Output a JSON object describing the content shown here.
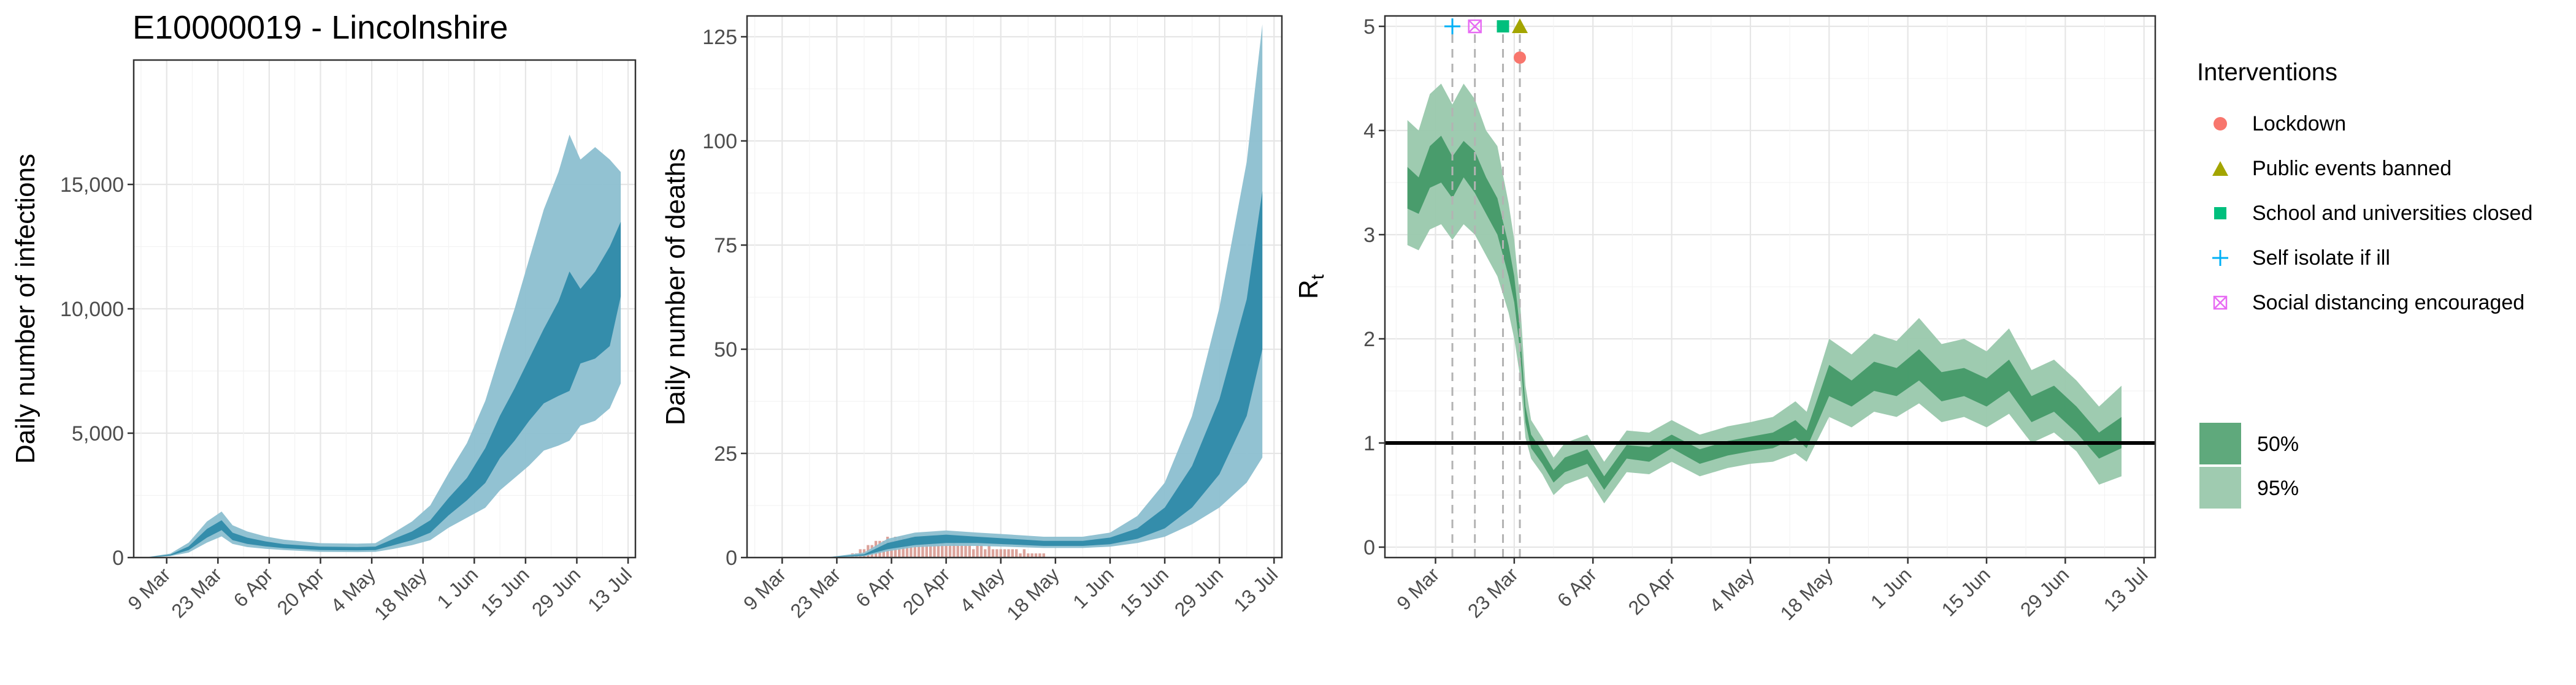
{
  "page_title": "E10000019 - Lincolnshire",
  "colors": {
    "infections_50": "#2a87a6",
    "infections_95": "#8cbfd0",
    "deaths_observed": "#d6938a",
    "rt_50": "#3f9765",
    "rt_95": "#99c8ac",
    "lockdown": "#f8766d",
    "public_events": "#a3a500",
    "school": "#00bf7d",
    "self_isolate": "#00b0f6",
    "social_distancing": "#e76bf3"
  },
  "legend": {
    "title": "Interventions",
    "items": [
      {
        "label": "Lockdown",
        "icon": "circle-icon",
        "color": "#f8766d"
      },
      {
        "label": "Public events banned",
        "icon": "triangle-icon",
        "color": "#a3a500"
      },
      {
        "label": "School and universities closed",
        "icon": "square-icon",
        "color": "#00bf7d"
      },
      {
        "label": "Self isolate if ill",
        "icon": "plus-icon",
        "color": "#00b0f6"
      },
      {
        "label": "Social distancing encouraged",
        "icon": "boxed-x-icon",
        "color": "#e76bf3"
      }
    ],
    "bands": [
      {
        "label": "50%",
        "color": "#5fa97c"
      },
      {
        "label": "95%",
        "color": "#9fcbb0"
      }
    ]
  },
  "chart_data": [
    {
      "type": "area",
      "title": "E10000019 - Lincolnshire",
      "xlabel": "",
      "ylabel": "Daily number of infections",
      "x_ticks": [
        "9 Mar",
        "23 Mar",
        "6 Apr",
        "20 Apr",
        "4 May",
        "18 May",
        "1 Jun",
        "15 Jun",
        "29 Jun",
        "13 Jul"
      ],
      "y_ticks": [
        "0",
        "5,000",
        "10,000",
        "15,000"
      ],
      "xlim": [
        "2020-02-29",
        "2020-07-15"
      ],
      "ylim": [
        0,
        20000
      ],
      "grid": true,
      "series": [
        {
          "name": "50%",
          "x": [
            "2020-03-03",
            "2020-03-10",
            "2020-03-15",
            "2020-03-20",
            "2020-03-24",
            "2020-03-27",
            "2020-03-31",
            "2020-04-05",
            "2020-04-10",
            "2020-04-20",
            "2020-04-30",
            "2020-05-05",
            "2020-05-10",
            "2020-05-15",
            "2020-05-20",
            "2020-05-25",
            "2020-05-30",
            "2020-06-04",
            "2020-06-08",
            "2020-06-12",
            "2020-06-16",
            "2020-06-20",
            "2020-06-24",
            "2020-06-27",
            "2020-06-30",
            "2020-07-04",
            "2020-07-08",
            "2020-07-11"
          ],
          "lower": [
            0,
            80,
            300,
            800,
            1100,
            700,
            550,
            450,
            380,
            300,
            290,
            300,
            500,
            700,
            1000,
            1700,
            2300,
            3000,
            4000,
            4700,
            5500,
            6200,
            6500,
            6700,
            7800,
            8000,
            8500,
            10500
          ],
          "upper": [
            0,
            120,
            450,
            1150,
            1500,
            1000,
            800,
            650,
            540,
            440,
            420,
            440,
            750,
            1050,
            1500,
            2400,
            3200,
            4400,
            5700,
            6800,
            8000,
            9200,
            10300,
            11500,
            10800,
            11500,
            12500,
            13500
          ]
        },
        {
          "name": "95%",
          "x": [
            "2020-03-03",
            "2020-03-10",
            "2020-03-15",
            "2020-03-20",
            "2020-03-24",
            "2020-03-27",
            "2020-03-31",
            "2020-04-05",
            "2020-04-10",
            "2020-04-20",
            "2020-04-30",
            "2020-05-05",
            "2020-05-10",
            "2020-05-15",
            "2020-05-20",
            "2020-05-25",
            "2020-05-30",
            "2020-06-04",
            "2020-06-08",
            "2020-06-12",
            "2020-06-16",
            "2020-06-20",
            "2020-06-24",
            "2020-06-27",
            "2020-06-30",
            "2020-07-04",
            "2020-07-08",
            "2020-07-11"
          ],
          "lower": [
            0,
            60,
            200,
            600,
            850,
            550,
            420,
            350,
            300,
            230,
            220,
            230,
            350,
            500,
            700,
            1200,
            1600,
            2000,
            2700,
            3200,
            3700,
            4300,
            4500,
            4700,
            5300,
            5500,
            6000,
            7000
          ],
          "upper": [
            0,
            160,
            600,
            1450,
            1850,
            1300,
            1050,
            850,
            720,
            580,
            560,
            580,
            1000,
            1450,
            2100,
            3400,
            4600,
            6300,
            8200,
            10000,
            12000,
            14000,
            15500,
            17000,
            16000,
            16500,
            16000,
            15500
          ]
        }
      ]
    },
    {
      "type": "area",
      "title": "",
      "xlabel": "",
      "ylabel": "Daily number of deaths",
      "x_ticks": [
        "9 Mar",
        "23 Mar",
        "6 Apr",
        "20 Apr",
        "4 May",
        "18 May",
        "1 Jun",
        "15 Jun",
        "29 Jun",
        "13 Jul"
      ],
      "y_ticks": [
        "0",
        "25",
        "50",
        "75",
        "100",
        "125"
      ],
      "xlim": [
        "2020-02-29",
        "2020-07-15"
      ],
      "ylim": [
        0,
        130
      ],
      "grid": true,
      "bars": {
        "name": "observed deaths",
        "x_start": "2020-03-25",
        "x_end": "2020-05-15",
        "values": [
          0,
          0,
          1,
          1,
          2,
          2,
          3,
          3,
          4,
          4,
          4,
          5,
          4,
          5,
          5,
          5,
          4,
          5,
          4,
          4,
          5,
          4,
          4,
          4,
          3,
          4,
          3,
          3,
          4,
          3,
          3,
          3,
          3,
          2,
          3,
          3,
          2,
          3,
          2,
          2,
          2,
          2,
          2,
          2,
          2,
          1,
          2,
          1,
          1,
          1,
          1,
          1
        ]
      },
      "series": [
        {
          "name": "50%",
          "x": [
            "2020-03-20",
            "2020-03-30",
            "2020-04-05",
            "2020-04-12",
            "2020-04-20",
            "2020-04-28",
            "2020-05-05",
            "2020-05-15",
            "2020-05-25",
            "2020-06-01",
            "2020-06-08",
            "2020-06-15",
            "2020-06-22",
            "2020-06-29",
            "2020-07-06",
            "2020-07-10"
          ],
          "lower": [
            0,
            0.5,
            2,
            3,
            3.5,
            3.5,
            3.2,
            2.8,
            2.8,
            3.2,
            4.5,
            7,
            12,
            20,
            34,
            50
          ],
          "upper": [
            0,
            0.8,
            3.5,
            5,
            5.5,
            5,
            4.6,
            4,
            4,
            4.8,
            7,
            12,
            22,
            38,
            62,
            88
          ]
        },
        {
          "name": "95%",
          "x": [
            "2020-03-20",
            "2020-03-30",
            "2020-04-05",
            "2020-04-12",
            "2020-04-20",
            "2020-04-28",
            "2020-05-05",
            "2020-05-15",
            "2020-05-25",
            "2020-06-01",
            "2020-06-08",
            "2020-06-15",
            "2020-06-22",
            "2020-06-29",
            "2020-07-06",
            "2020-07-10"
          ],
          "lower": [
            0,
            0.3,
            1.5,
            2.5,
            2.8,
            2.8,
            2.6,
            2.3,
            2.3,
            2.6,
            3.5,
            5,
            8,
            12,
            18,
            24
          ],
          "upper": [
            0,
            1.2,
            4.5,
            6,
            6.5,
            6,
            5.6,
            5,
            5,
            6,
            10,
            18,
            34,
            60,
            95,
            128
          ]
        }
      ]
    },
    {
      "type": "area",
      "title": "",
      "xlabel": "",
      "ylabel": "Rt",
      "ylabel_main": "R",
      "ylabel_sub": "t",
      "x_ticks": [
        "9 Mar",
        "23 Mar",
        "6 Apr",
        "20 Apr",
        "4 May",
        "18 May",
        "1 Jun",
        "15 Jun",
        "29 Jun",
        "13 Jul"
      ],
      "y_ticks": [
        "0",
        "1",
        "2",
        "3",
        "4",
        "5"
      ],
      "xlim": [
        "2020-02-29",
        "2020-07-15"
      ],
      "ylim": [
        -0.1,
        5.1
      ],
      "grid": true,
      "reference_line": 1,
      "interventions": [
        {
          "name": "Self isolate if ill",
          "date": "2020-03-12",
          "y": 5.0,
          "shape": "plus"
        },
        {
          "name": "Social distancing encouraged",
          "date": "2020-03-16",
          "y": 5.0,
          "shape": "boxed-x"
        },
        {
          "name": "School and universities closed",
          "date": "2020-03-21",
          "y": 5.0,
          "shape": "square"
        },
        {
          "name": "Public events banned",
          "date": "2020-03-24",
          "y": 5.0,
          "shape": "triangle"
        },
        {
          "name": "Lockdown",
          "date": "2020-03-24",
          "y": 4.7,
          "shape": "circle"
        }
      ],
      "series": [
        {
          "name": "50%",
          "x": [
            "2020-03-04",
            "2020-03-06",
            "2020-03-08",
            "2020-03-10",
            "2020-03-12",
            "2020-03-14",
            "2020-03-16",
            "2020-03-18",
            "2020-03-20",
            "2020-03-22",
            "2020-03-23",
            "2020-03-24",
            "2020-03-25",
            "2020-03-26",
            "2020-03-28",
            "2020-03-30",
            "2020-04-01",
            "2020-04-05",
            "2020-04-08",
            "2020-04-12",
            "2020-04-16",
            "2020-04-20",
            "2020-04-25",
            "2020-04-30",
            "2020-05-04",
            "2020-05-08",
            "2020-05-12",
            "2020-05-14",
            "2020-05-18",
            "2020-05-22",
            "2020-05-26",
            "2020-05-30",
            "2020-06-03",
            "2020-06-07",
            "2020-06-11",
            "2020-06-15",
            "2020-06-19",
            "2020-06-23",
            "2020-06-27",
            "2020-07-01",
            "2020-07-05",
            "2020-07-09"
          ],
          "lower": [
            3.25,
            3.2,
            3.45,
            3.5,
            3.35,
            3.55,
            3.4,
            3.2,
            3.0,
            2.6,
            2.35,
            1.9,
            1.2,
            0.95,
            0.8,
            0.62,
            0.72,
            0.8,
            0.55,
            0.85,
            0.82,
            0.95,
            0.8,
            0.88,
            0.92,
            0.95,
            1.05,
            0.95,
            1.45,
            1.35,
            1.5,
            1.45,
            1.6,
            1.4,
            1.45,
            1.35,
            1.5,
            1.2,
            1.3,
            1.1,
            0.85,
            0.95
          ],
          "upper": [
            3.65,
            3.55,
            3.85,
            3.95,
            3.75,
            3.9,
            3.8,
            3.55,
            3.35,
            2.9,
            2.6,
            2.1,
            1.35,
            1.08,
            0.92,
            0.74,
            0.86,
            0.94,
            0.68,
            0.98,
            0.96,
            1.08,
            0.94,
            1.02,
            1.06,
            1.1,
            1.22,
            1.12,
            1.75,
            1.6,
            1.78,
            1.72,
            1.9,
            1.68,
            1.72,
            1.62,
            1.8,
            1.45,
            1.55,
            1.35,
            1.1,
            1.25
          ]
        },
        {
          "name": "95%",
          "x": [
            "2020-03-04",
            "2020-03-06",
            "2020-03-08",
            "2020-03-10",
            "2020-03-12",
            "2020-03-14",
            "2020-03-16",
            "2020-03-18",
            "2020-03-20",
            "2020-03-22",
            "2020-03-23",
            "2020-03-24",
            "2020-03-25",
            "2020-03-26",
            "2020-03-28",
            "2020-03-30",
            "2020-04-01",
            "2020-04-05",
            "2020-04-08",
            "2020-04-12",
            "2020-04-16",
            "2020-04-20",
            "2020-04-25",
            "2020-04-30",
            "2020-05-04",
            "2020-05-08",
            "2020-05-12",
            "2020-05-14",
            "2020-05-18",
            "2020-05-22",
            "2020-05-26",
            "2020-05-30",
            "2020-06-03",
            "2020-06-07",
            "2020-06-11",
            "2020-06-15",
            "2020-06-19",
            "2020-06-23",
            "2020-06-27",
            "2020-07-01",
            "2020-07-05",
            "2020-07-09"
          ],
          "lower": [
            2.9,
            2.85,
            3.05,
            3.1,
            2.95,
            3.1,
            3.0,
            2.8,
            2.6,
            2.25,
            2.0,
            1.65,
            1.05,
            0.85,
            0.7,
            0.5,
            0.6,
            0.68,
            0.42,
            0.72,
            0.7,
            0.82,
            0.68,
            0.76,
            0.8,
            0.82,
            0.9,
            0.82,
            1.25,
            1.15,
            1.3,
            1.25,
            1.38,
            1.2,
            1.25,
            1.15,
            1.28,
            1.0,
            1.1,
            0.92,
            0.6,
            0.68
          ],
          "upper": [
            4.1,
            4.0,
            4.35,
            4.45,
            4.25,
            4.45,
            4.3,
            4.0,
            3.85,
            3.3,
            2.95,
            2.4,
            1.55,
            1.22,
            1.05,
            0.86,
            1.0,
            1.08,
            0.82,
            1.12,
            1.1,
            1.22,
            1.08,
            1.16,
            1.2,
            1.25,
            1.4,
            1.3,
            2.0,
            1.85,
            2.05,
            1.98,
            2.2,
            1.95,
            2.0,
            1.88,
            2.1,
            1.7,
            1.8,
            1.6,
            1.35,
            1.55
          ]
        }
      ]
    }
  ]
}
